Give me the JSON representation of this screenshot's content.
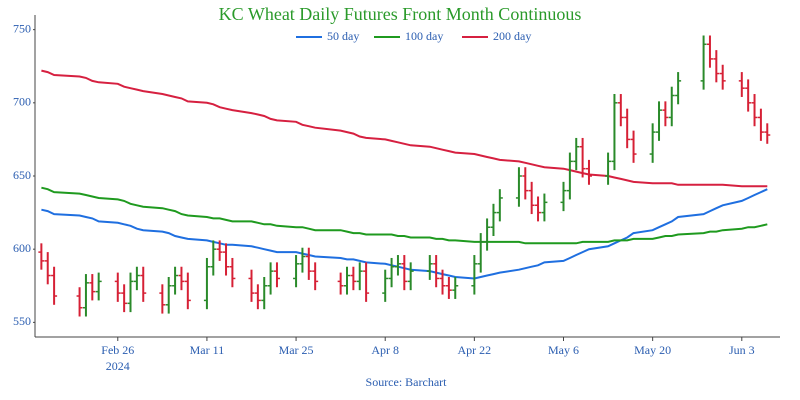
{
  "chart_data": {
    "type": "ohlc",
    "title": "KC Wheat Daily Futures Front Month Continuous",
    "source": "Source: Barchart",
    "x": [
      "2024-02-14",
      "2024-02-15",
      "2024-02-16",
      "2024-02-20",
      "2024-02-21",
      "2024-02-22",
      "2024-02-23",
      "2024-02-26",
      "2024-02-27",
      "2024-02-28",
      "2024-02-29",
      "2024-03-01",
      "2024-03-04",
      "2024-03-05",
      "2024-03-06",
      "2024-03-07",
      "2024-03-08",
      "2024-03-11",
      "2024-03-12",
      "2024-03-13",
      "2024-03-14",
      "2024-03-15",
      "2024-03-18",
      "2024-03-19",
      "2024-03-20",
      "2024-03-21",
      "2024-03-22",
      "2024-03-25",
      "2024-03-26",
      "2024-03-27",
      "2024-03-28",
      "2024-04-01",
      "2024-04-02",
      "2024-04-03",
      "2024-04-04",
      "2024-04-05",
      "2024-04-08",
      "2024-04-09",
      "2024-04-10",
      "2024-04-11",
      "2024-04-12",
      "2024-04-15",
      "2024-04-16",
      "2024-04-17",
      "2024-04-18",
      "2024-04-19",
      "2024-04-22",
      "2024-04-23",
      "2024-04-24",
      "2024-04-25",
      "2024-04-26",
      "2024-04-29",
      "2024-04-30",
      "2024-05-01",
      "2024-05-02",
      "2024-05-03",
      "2024-05-06",
      "2024-05-07",
      "2024-05-08",
      "2024-05-09",
      "2024-05-10",
      "2024-05-13",
      "2024-05-14",
      "2024-05-15",
      "2024-05-16",
      "2024-05-17",
      "2024-05-20",
      "2024-05-21",
      "2024-05-22",
      "2024-05-23",
      "2024-05-24",
      "2024-05-28",
      "2024-05-29",
      "2024-05-30",
      "2024-05-31",
      "2024-06-03",
      "2024-06-04",
      "2024-06-05",
      "2024-06-06",
      "2024-06-07"
    ],
    "ohlc": {
      "open": [
        598,
        592,
        582,
        568,
        560,
        577,
        571,
        578,
        570,
        563,
        578,
        582,
        570,
        562,
        575,
        582,
        578,
        565,
        588,
        600,
        598,
        588,
        580,
        570,
        565,
        575,
        585,
        580,
        590,
        595,
        585,
        578,
        575,
        582,
        578,
        585,
        570,
        580,
        588,
        590,
        578,
        585,
        590,
        580,
        575,
        572,
        575,
        590,
        605,
        615,
        625,
        635,
        650,
        640,
        630,
        625,
        632,
        640,
        660,
        670,
        655,
        650,
        660,
        700,
        690,
        675,
        665,
        680,
        695,
        690,
        705,
        715,
        740,
        730,
        720,
        715,
        710,
        700,
        690,
        680
      ],
      "high": [
        604,
        598,
        588,
        574,
        583,
        583,
        584,
        584,
        576,
        584,
        588,
        588,
        576,
        581,
        588,
        588,
        584,
        594,
        606,
        606,
        604,
        594,
        586,
        576,
        581,
        591,
        591,
        596,
        601,
        601,
        591,
        584,
        588,
        588,
        591,
        591,
        586,
        594,
        596,
        596,
        591,
        596,
        596,
        586,
        581,
        581,
        596,
        611,
        621,
        631,
        641,
        656,
        656,
        646,
        636,
        638,
        646,
        666,
        676,
        676,
        661,
        666,
        706,
        706,
        696,
        681,
        686,
        701,
        701,
        711,
        721,
        746,
        746,
        736,
        726,
        721,
        716,
        706,
        696,
        686
      ],
      "low": [
        586,
        576,
        562,
        554,
        554,
        565,
        565,
        564,
        557,
        557,
        572,
        564,
        556,
        556,
        569,
        572,
        559,
        559,
        582,
        592,
        582,
        574,
        564,
        559,
        559,
        569,
        574,
        574,
        584,
        579,
        572,
        569,
        569,
        572,
        572,
        564,
        564,
        574,
        582,
        572,
        572,
        579,
        574,
        569,
        566,
        566,
        569,
        584,
        599,
        609,
        619,
        629,
        634,
        624,
        619,
        619,
        626,
        634,
        654,
        649,
        644,
        644,
        654,
        684,
        669,
        659,
        659,
        674,
        684,
        684,
        699,
        709,
        724,
        714,
        709,
        704,
        694,
        684,
        674,
        672
      ],
      "close": [
        592,
        582,
        568,
        560,
        577,
        571,
        578,
        570,
        563,
        578,
        582,
        570,
        562,
        575,
        582,
        578,
        565,
        588,
        600,
        598,
        588,
        580,
        570,
        565,
        575,
        585,
        580,
        590,
        595,
        585,
        578,
        575,
        582,
        578,
        585,
        570,
        580,
        588,
        590,
        578,
        585,
        590,
        580,
        575,
        572,
        575,
        590,
        605,
        615,
        625,
        635,
        650,
        640,
        630,
        625,
        632,
        640,
        660,
        670,
        655,
        650,
        660,
        700,
        690,
        675,
        665,
        680,
        695,
        690,
        705,
        715,
        740,
        730,
        720,
        715,
        710,
        700,
        690,
        680,
        678
      ]
    },
    "up_color": "#2a8a2a",
    "down_color": "#d62035",
    "series": [
      {
        "name": "50 day",
        "color": "#1f6fe0",
        "values": [
          627,
          626,
          624,
          623,
          622,
          621,
          619,
          618,
          617,
          616,
          614,
          613,
          612,
          611,
          609,
          608,
          607,
          606,
          605,
          604,
          603,
          603,
          602,
          601,
          600,
          599,
          598,
          598,
          597,
          596,
          595,
          594,
          593,
          593,
          592,
          591,
          590,
          589,
          588,
          587,
          586,
          585,
          584,
          583,
          582,
          581,
          580,
          581,
          582,
          583,
          584,
          586,
          587,
          588,
          589,
          591,
          592,
          594,
          596,
          598,
          600,
          602,
          604,
          606,
          608,
          611,
          613,
          615,
          617,
          619,
          622,
          624,
          626,
          628,
          630,
          633,
          635,
          637,
          639,
          641
        ]
      },
      {
        "name": "100 day",
        "color": "#1f9a1f",
        "values": [
          642,
          641,
          639,
          638,
          637,
          636,
          635,
          634,
          633,
          631,
          630,
          629,
          628,
          627,
          626,
          624,
          623,
          622,
          621,
          621,
          620,
          619,
          619,
          618,
          617,
          617,
          616,
          615,
          615,
          614,
          613,
          613,
          612,
          611,
          611,
          610,
          610,
          610,
          609,
          609,
          608,
          608,
          607,
          607,
          606,
          606,
          605,
          605,
          605,
          605,
          605,
          605,
          604,
          604,
          604,
          604,
          604,
          604,
          604,
          605,
          605,
          605,
          606,
          606,
          606,
          607,
          607,
          608,
          609,
          609,
          610,
          611,
          612,
          612,
          613,
          614,
          615,
          615,
          616,
          617
        ]
      },
      {
        "name": "200 day",
        "color": "#d62040",
        "values": [
          722,
          721,
          719,
          718,
          717,
          715,
          714,
          713,
          711,
          710,
          709,
          708,
          706,
          705,
          704,
          703,
          701,
          700,
          699,
          697,
          696,
          695,
          693,
          692,
          691,
          689,
          688,
          687,
          685,
          684,
          683,
          681,
          680,
          679,
          677,
          676,
          675,
          674,
          673,
          672,
          671,
          670,
          669,
          668,
          667,
          666,
          665,
          664,
          663,
          662,
          661,
          660,
          659,
          658,
          657,
          656,
          655,
          654,
          653,
          652,
          651,
          650,
          649,
          648,
          647,
          646,
          645,
          645,
          645,
          645,
          644,
          644,
          644,
          644,
          644,
          643,
          643,
          643,
          643,
          643
        ]
      }
    ],
    "xlim": [
      "2024-02-13",
      "2024-06-09"
    ],
    "xticks": [
      {
        "value": "2024-02-26",
        "label": "Feb 26",
        "sublabel": "2024"
      },
      {
        "value": "2024-03-11",
        "label": "Mar 11"
      },
      {
        "value": "2024-03-25",
        "label": "Mar 25"
      },
      {
        "value": "2024-04-08",
        "label": "Apr 8"
      },
      {
        "value": "2024-04-22",
        "label": "Apr 22"
      },
      {
        "value": "2024-05-06",
        "label": "May 6"
      },
      {
        "value": "2024-05-20",
        "label": "May 20"
      },
      {
        "value": "2024-06-03",
        "label": "Jun 3"
      }
    ],
    "ylim": [
      540,
      760
    ],
    "yticks": [
      550,
      600,
      650,
      700,
      750
    ],
    "grid": false,
    "legend": "top"
  }
}
